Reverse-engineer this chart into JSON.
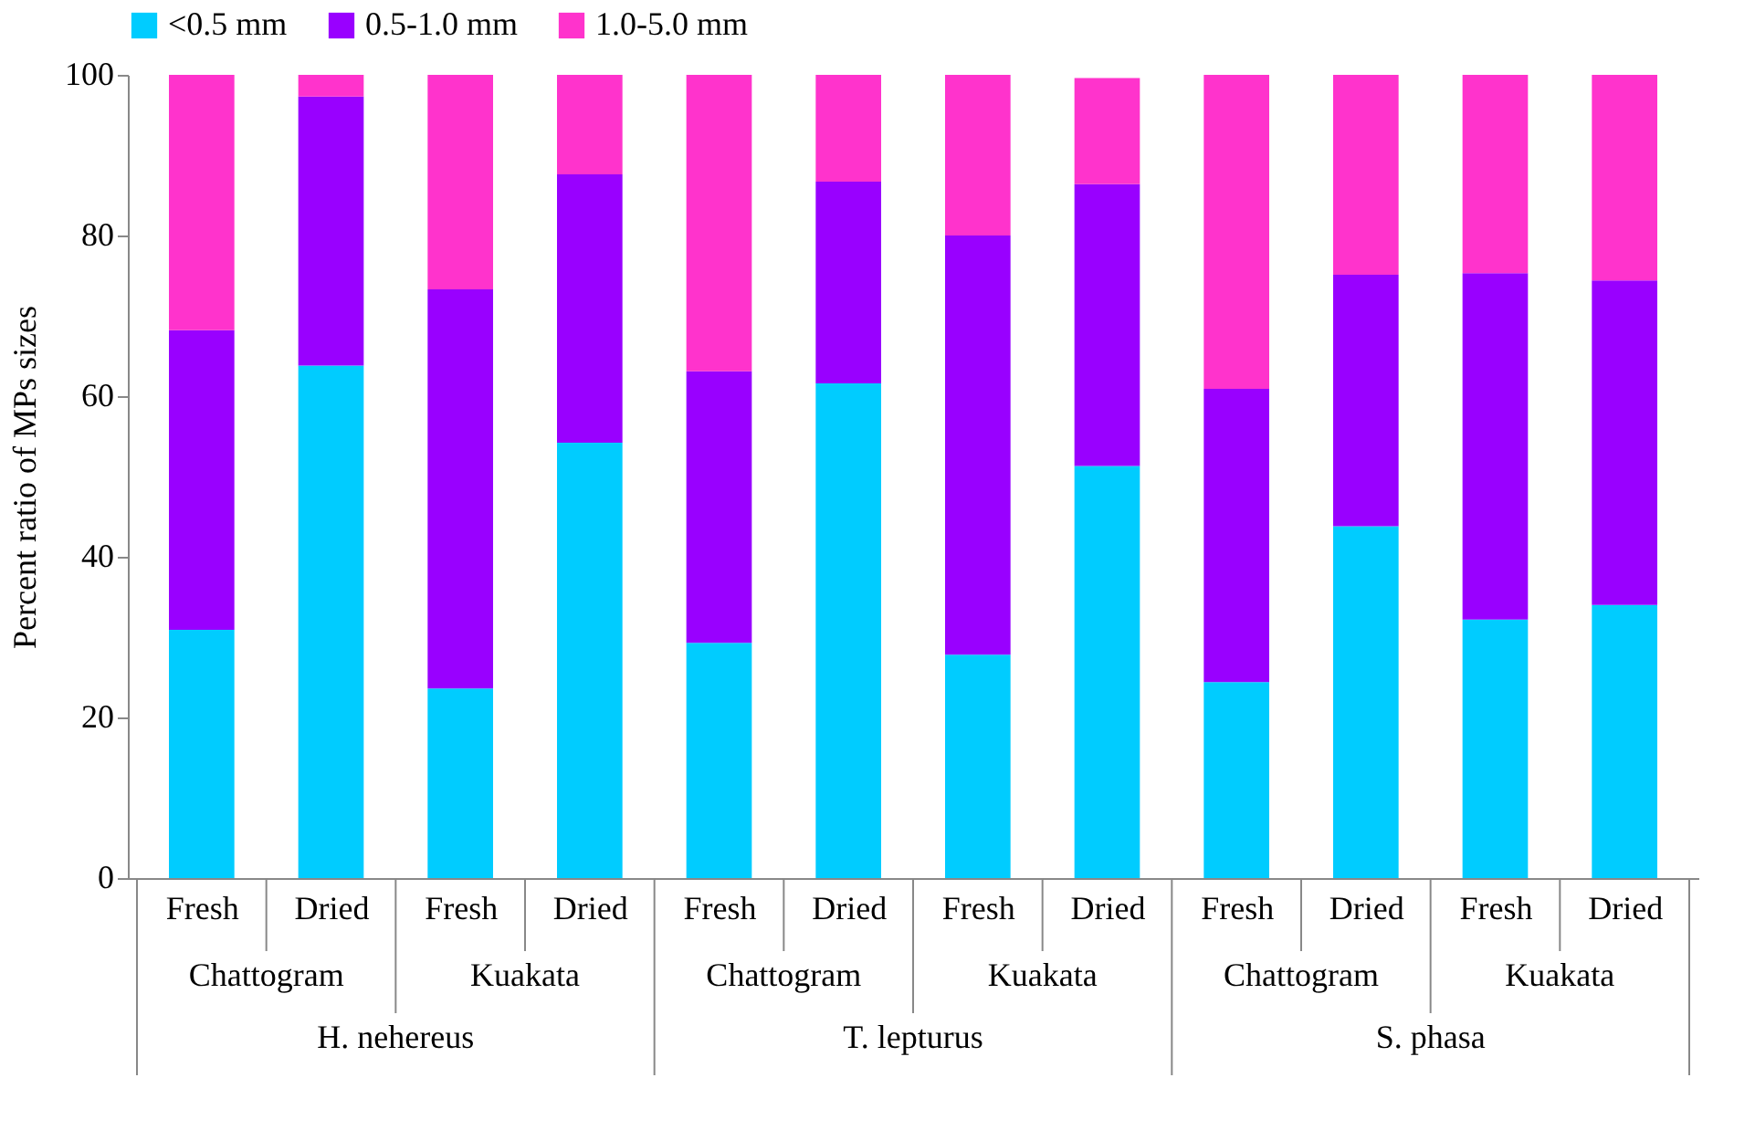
{
  "chart_data": {
    "type": "bar",
    "stacked": true,
    "ylabel": "Percent ratio of MPs sizes",
    "categories": [
      "Fresh",
      "Dried",
      "Fresh",
      "Dried",
      "Fresh",
      "Dried",
      "Fresh",
      "Dried",
      "Fresh",
      "Dried",
      "Fresh",
      "Dried"
    ],
    "series": [
      {
        "name": "<0.5 mm",
        "color": "#00ccff",
        "values": [
          30.9,
          63.8,
          23.6,
          54.2,
          29.3,
          61.6,
          27.8,
          51.3,
          24.4,
          43.8,
          32.2,
          34.0
        ]
      },
      {
        "name": "0.5-1.0 mm",
        "color": "#9900ff",
        "values": [
          37.3,
          33.5,
          49.7,
          33.4,
          33.8,
          25.1,
          52.2,
          35.1,
          36.5,
          31.3,
          43.1,
          40.4
        ]
      },
      {
        "name": "1.0-5.0 mm",
        "color": "#ff33cc",
        "values": [
          31.8,
          2.7,
          26.7,
          12.4,
          36.9,
          13.3,
          20.0,
          13.2,
          39.1,
          24.9,
          24.7,
          25.6
        ]
      }
    ],
    "ylim": [
      0,
      100
    ],
    "yticks": [
      0,
      20,
      40,
      60,
      80,
      100
    ],
    "grid": false,
    "legend": "top",
    "annotations": [
      "Chattogram",
      "Kuakata",
      "Chattogram",
      "Kuakata",
      "Chattogram",
      "Kuakata",
      "H. nehereus",
      "T. lepturus",
      "S. phasa"
    ]
  }
}
